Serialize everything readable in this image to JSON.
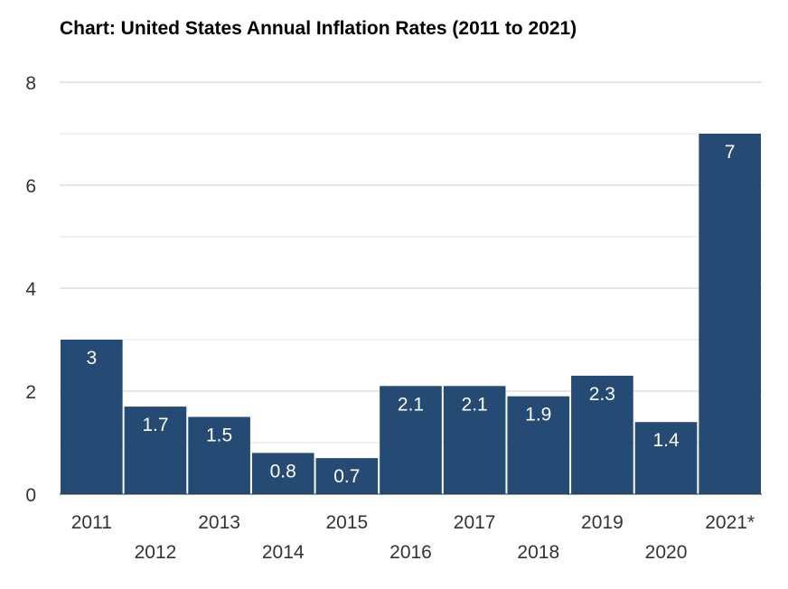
{
  "title": "Chart: United States Annual Inflation Rates (2011 to 2021)",
  "chart_data": {
    "type": "bar",
    "categories": [
      "2011",
      "2012",
      "2013",
      "2014",
      "2015",
      "2016",
      "2017",
      "2018",
      "2019",
      "2020",
      "2021*"
    ],
    "values": [
      3,
      1.7,
      1.5,
      0.8,
      0.7,
      2.1,
      2.1,
      1.9,
      2.3,
      1.4,
      7
    ],
    "data_labels": [
      "3",
      "1.7",
      "1.5",
      "0.8",
      "0.7",
      "2.1",
      "2.1",
      "1.9",
      "2.3",
      "1.4",
      "7"
    ],
    "yticks": [
      "0",
      "2",
      "4",
      "6",
      "8"
    ],
    "ylim": [
      0,
      8
    ],
    "xlabel": "",
    "ylabel": "",
    "grid": true,
    "legend": "none",
    "bar_color": "#254a74",
    "grid_color": "#cccccc",
    "minor_grid_color": "#e6e6e6"
  }
}
